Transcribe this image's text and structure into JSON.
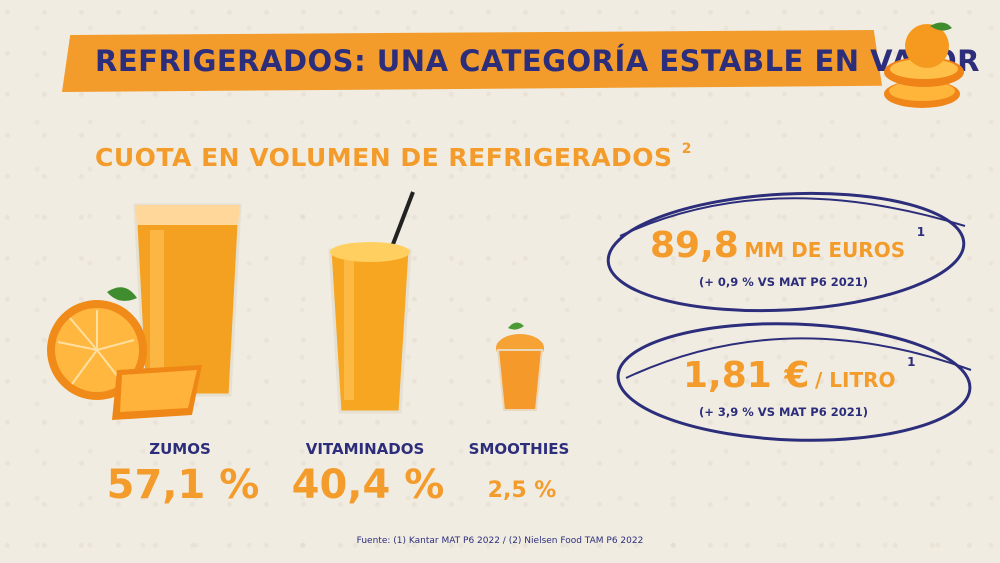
{
  "header": {
    "title": "REFRIGERADOS: UNA CATEGORÍA ESTABLE EN VALOR"
  },
  "section": {
    "title": "CUOTA EN VOLUMEN DE REFRIGERADOS",
    "footnote": "2"
  },
  "categories": [
    {
      "name": "ZUMOS",
      "value": "57,1 %"
    },
    {
      "name": "VITAMINADOS",
      "value": "40,4 %"
    },
    {
      "name": "SMOOTHIES",
      "value": "2,5 %"
    }
  ],
  "stats": [
    {
      "main": "89,8",
      "unit": "MM DE EUROS",
      "footnote": "1",
      "sub": "(+ 0,9 % VS MAT P6 2021)"
    },
    {
      "main": "1,81 €",
      "unit": "/ LITRO",
      "footnote": "1",
      "sub": "(+ 3,9 % VS MAT P6 2021)"
    }
  ],
  "source": "Fuente: (1) Kantar MAT P6 2022 / (2) Nielsen Food TAM P6 2022",
  "colors": {
    "orange": "#f39c2b",
    "navy": "#2c2e7b",
    "background": "#f1ece2"
  },
  "icons": [
    "orange-slices-icon",
    "juice-glass-icon",
    "orange-icon",
    "vitamin-drink-icon",
    "smoothie-cup-icon"
  ]
}
